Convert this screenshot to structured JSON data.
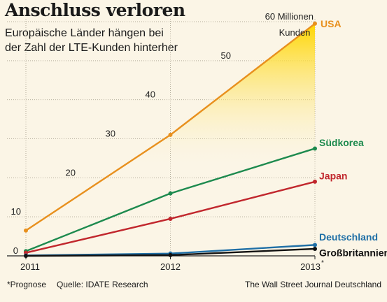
{
  "chart_data": {
    "type": "line",
    "title": "Anschluss verloren",
    "subtitle": "Europäische Länder hängen bei der Zahl der LTE-Kunden hinterher",
    "x": [
      "2011",
      "2012",
      "2013"
    ],
    "x_tick_labels": [
      "2011",
      "2012",
      "2013"
    ],
    "x_asterisk_on_last": "*",
    "ylim": [
      0,
      60
    ],
    "y_ticks": [
      0,
      10,
      20,
      30,
      40,
      50,
      60
    ],
    "y_tick_labels": [
      "0",
      "10",
      "20",
      "30",
      "40",
      "50",
      "60 Millionen"
    ],
    "y_top_unit_line2": "Kunden",
    "series": [
      {
        "name": "USA",
        "values": [
          6.5,
          31,
          59.5
        ],
        "color": "#e8901e"
      },
      {
        "name": "Südkorea",
        "values": [
          1.2,
          16,
          27.5
        ],
        "color": "#1d8a4e"
      },
      {
        "name": "Japan",
        "values": [
          0.8,
          9.5,
          19
        ],
        "color": "#c1272d"
      },
      {
        "name": "Deutschland",
        "values": [
          0.1,
          0.6,
          2.8
        ],
        "color": "#1f6fa6"
      },
      {
        "name": "Großbritannien",
        "values": [
          0.0,
          0.2,
          1.8
        ],
        "color": "#111111"
      }
    ],
    "fill_under": "USA",
    "fill_color": "#ffd92e",
    "grid": true
  },
  "footer": {
    "footnote": "*Prognose",
    "source": "Quelle: IDATE Research",
    "credit": "The Wall Street Journal Deutschland"
  }
}
